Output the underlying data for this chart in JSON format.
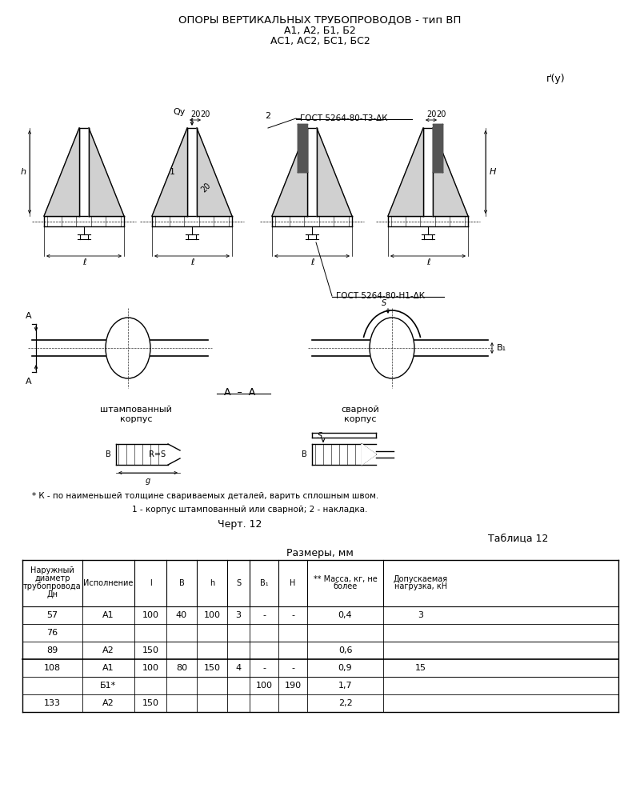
{
  "title_line1": "ОПОРЫ ВЕРТИКАЛЬНЫХ ТРУБОПРОВОДОВ - тип ВП",
  "title_line2": "А1, А2, Б1, Б2",
  "title_line3": "АС1, АС2, БС1, БС2",
  "page_label": "ґ(у)",
  "gost_label1": "ГОСТ 5264-80-Т3-ΔК",
  "gost_label2": "ГОСТ 5264-80-Н1-ΔК",
  "note1": "* К - по наименьшей толщине свариваемых деталей, варить сплошным швом.",
  "note2": "1 - корпус штампованный или сварной; 2 - накладка.",
  "chert_label": "Черт. 12",
  "table_label": "Таблица 12",
  "table_title": "Размеры, мм",
  "col_headers": [
    "Наружный\nдиаметр\nтрубопровода\nДн",
    "Исполнение",
    "l",
    "B",
    "h",
    "S",
    "B₁",
    "H",
    "** Масса, кг, не\nболее",
    "Допускаемая\nнагрузка, кН"
  ],
  "table_rows": [
    [
      "57",
      "А1",
      "100",
      "40",
      "100",
      "3",
      "-",
      "-",
      "0,4",
      "3"
    ],
    [
      "76",
      "",
      "",
      "",
      "",
      "",
      "",
      "",
      "",
      ""
    ],
    [
      "89",
      "А2",
      "150",
      "",
      "",
      "",
      "",
      "",
      "0,6",
      ""
    ],
    [
      "108",
      "А1",
      "100",
      "80",
      "150",
      "4",
      "-",
      "-",
      "0,9",
      "15"
    ],
    [
      "",
      "Б1*",
      "",
      "",
      "",
      "",
      "100",
      "190",
      "1,7",
      ""
    ],
    [
      "133",
      "А2",
      "150",
      "",
      "",
      "",
      "",
      "",
      "2,2",
      ""
    ]
  ],
  "bg_color": "#ffffff",
  "line_color": "#000000",
  "text_color": "#000000"
}
